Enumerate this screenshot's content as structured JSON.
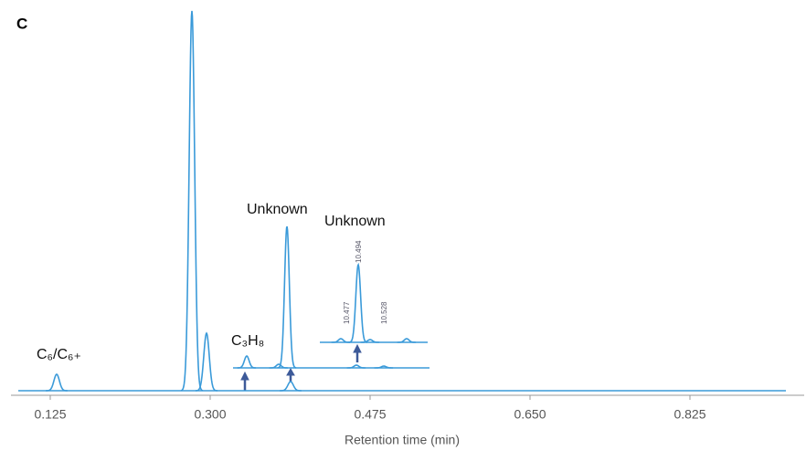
{
  "chart_data": {
    "type": "line",
    "panel_label": "C",
    "x_label": "Retention time (min)",
    "xlim": [
      0.082,
      0.95
    ],
    "xticks": [
      0.125,
      {
        "value": 0.3,
        "label": "0.300"
      },
      0.475,
      {
        "value": 0.65,
        "label": "0.650"
      },
      0.825
    ],
    "ylim": [
      0,
      420
    ],
    "color": "#3a9ad9",
    "series": [
      {
        "span": [
          0.09,
          0.93
        ],
        "x": [
          0.132,
          0.28,
          0.296,
          0.388
        ],
        "values": [
          18,
          416,
          63,
          10
        ]
      },
      {
        "span": [
          0.325,
          0.54
        ],
        "x": [
          0.34,
          0.375,
          0.384,
          0.46,
          0.49
        ],
        "values": [
          13,
          4,
          155,
          3,
          2
        ]
      },
      {
        "span": [
          0.42,
          0.538
        ],
        "x": [
          0.443,
          0.462,
          0.475,
          0.515
        ],
        "values": [
          4,
          85,
          3,
          4
        ]
      }
    ],
    "annotations": [
      "C₆/C₆₊",
      "C₃H₈",
      "Unknown",
      "Unknown"
    ],
    "inset_labels": [
      10.477,
      10.494,
      10.528
    ]
  }
}
